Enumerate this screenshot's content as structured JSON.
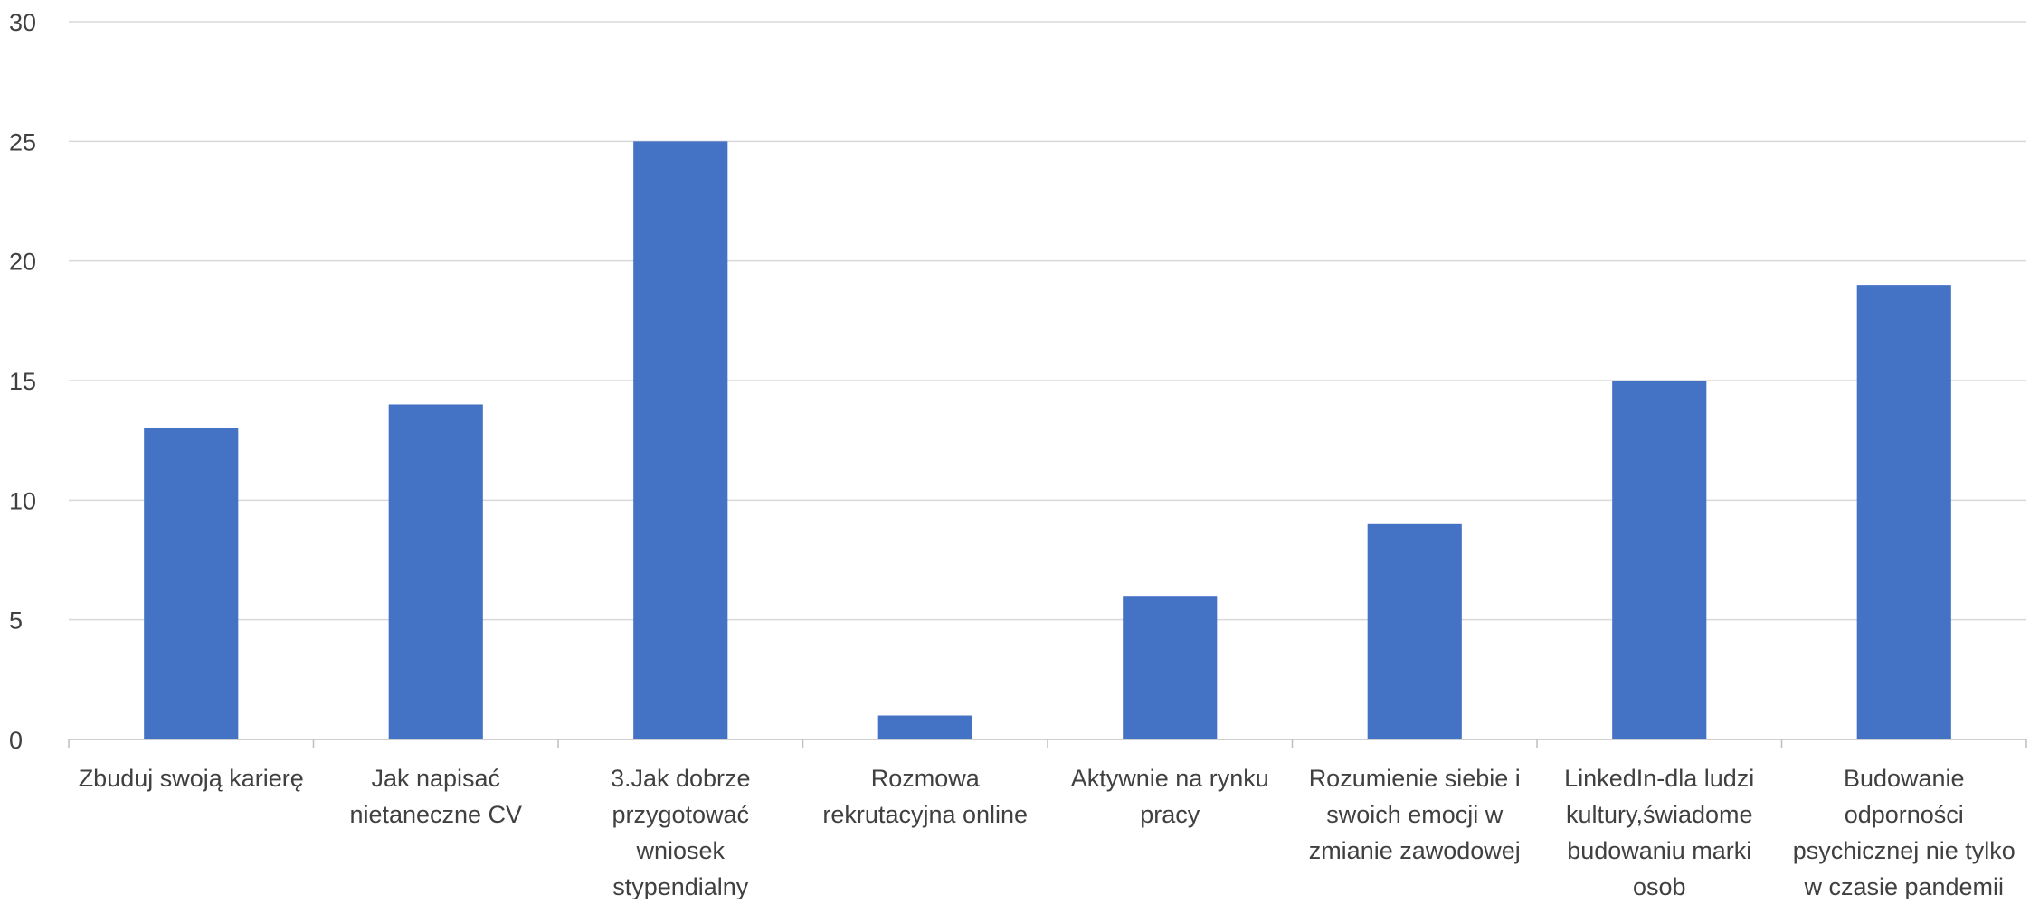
{
  "chart_data": {
    "type": "bar",
    "title": "",
    "xlabel": "",
    "ylabel": "",
    "ylim": [
      0,
      30
    ],
    "yticks": [
      0,
      5,
      10,
      15,
      20,
      25,
      30
    ],
    "grid": true,
    "legend": "none",
    "bar_color": "#4472C4",
    "grid_color": "#D9D9D9",
    "axis_color": "#BFBFBF",
    "text_color": "#404040",
    "categories": [
      [
        "Zbuduj swoją karierę"
      ],
      [
        "Jak napisać",
        "nietaneczne CV"
      ],
      [
        "3.Jak dobrze",
        "przygotować",
        "wniosek",
        "stypendialny"
      ],
      [
        "Rozmowa",
        "rekrutacyjna online"
      ],
      [
        "Aktywnie na rynku",
        "pracy"
      ],
      [
        "Rozumienie siebie i",
        "swoich emocji w",
        "zmianie zawodowej"
      ],
      [
        "LinkedIn-dla ludzi",
        "kultury,świadome",
        "budowaniu marki",
        "osob"
      ],
      [
        "Budowanie",
        "odporności",
        "psychicznej nie tylko",
        "w czasie pandemii"
      ]
    ],
    "values": [
      13,
      14,
      25,
      1,
      6,
      9,
      15,
      19
    ]
  }
}
